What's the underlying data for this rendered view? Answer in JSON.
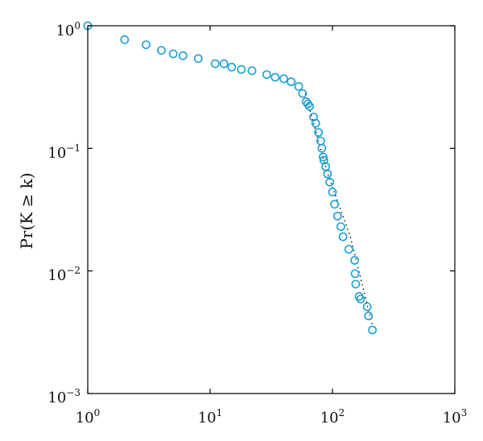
{
  "chart_data": {
    "type": "scatter",
    "xscale": "log",
    "yscale": "log",
    "xlim": [
      1,
      1000
    ],
    "ylim": [
      0.001,
      1
    ],
    "xlabel": "",
    "ylabel": "Pr(K ≥ k)",
    "x_ticks": [
      {
        "value": 1,
        "base": "10",
        "exp": "0"
      },
      {
        "value": 10,
        "base": "10",
        "exp": "1"
      },
      {
        "value": 100,
        "base": "10",
        "exp": "2"
      },
      {
        "value": 1000,
        "base": "10",
        "exp": "3"
      }
    ],
    "y_ticks": [
      {
        "value": 1,
        "base": "10",
        "exp": "0"
      },
      {
        "value": 0.1,
        "base": "10",
        "exp": "−1"
      },
      {
        "value": 0.01,
        "base": "10",
        "exp": "−2"
      },
      {
        "value": 0.001,
        "base": "10",
        "exp": "−3"
      }
    ],
    "marker_color": "#1a9fd9",
    "fit_line_color": "#000000",
    "grid": false,
    "legend": "none",
    "series": [
      {
        "x": [
          1,
          2,
          3,
          4,
          5,
          6,
          8,
          11,
          13,
          15,
          18,
          22,
          29,
          34,
          40,
          46,
          53,
          57,
          61,
          63,
          65,
          70,
          73,
          77,
          80,
          82,
          84,
          85,
          88,
          91,
          95,
          100,
          104,
          110,
          117,
          122,
          136,
          152,
          153,
          155,
          165,
          170,
          192,
          197,
          212
        ],
        "y": [
          1.0,
          0.77,
          0.7,
          0.63,
          0.59,
          0.57,
          0.54,
          0.49,
          0.49,
          0.46,
          0.44,
          0.43,
          0.4,
          0.38,
          0.37,
          0.35,
          0.32,
          0.28,
          0.24,
          0.23,
          0.22,
          0.18,
          0.16,
          0.135,
          0.115,
          0.1,
          0.085,
          0.08,
          0.071,
          0.062,
          0.053,
          0.044,
          0.035,
          0.028,
          0.023,
          0.019,
          0.015,
          0.0122,
          0.0095,
          0.0078,
          0.0062,
          0.0059,
          0.0051,
          0.0043,
          0.0033
        ]
      }
    ],
    "fit_line": {
      "x": [
        60,
        90,
        140,
        212
      ],
      "y": [
        0.28,
        0.065,
        0.019,
        0.0036
      ]
    }
  }
}
